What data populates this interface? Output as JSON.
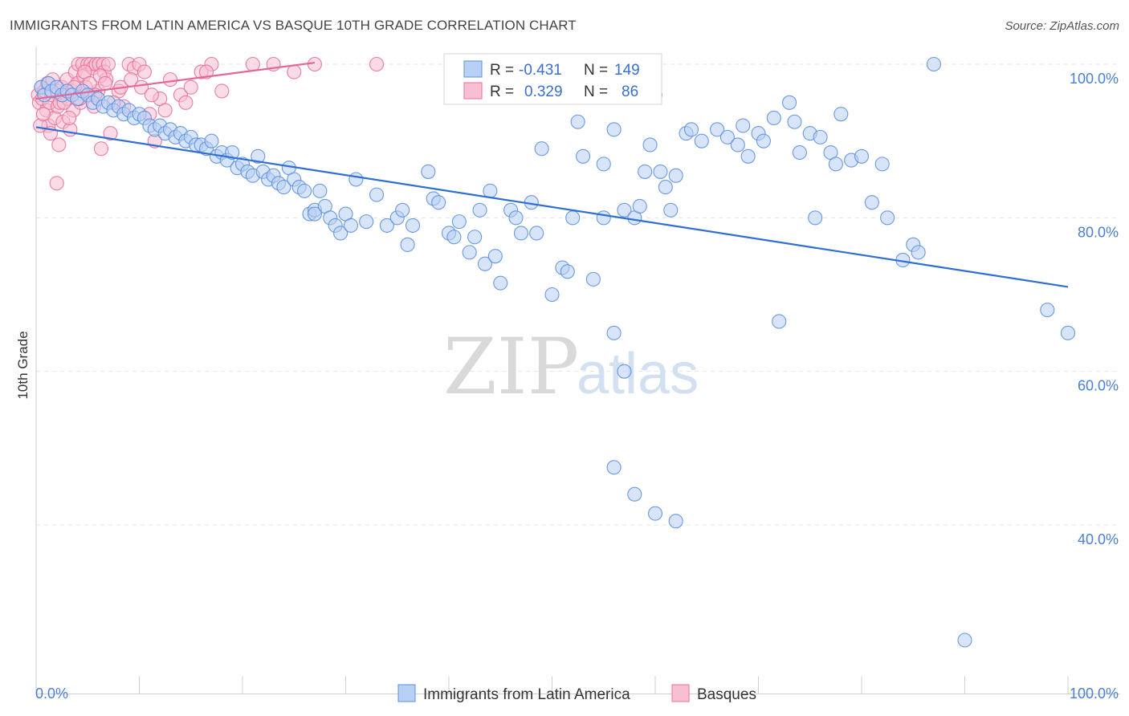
{
  "title": "IMMIGRANTS FROM LATIN AMERICA VS BASQUE 10TH GRADE CORRELATION CHART",
  "source": "Source: ZipAtlas.com",
  "watermark": {
    "zip": "ZIP",
    "atlas": "atlas"
  },
  "legend_box": [
    {
      "r_label": "R =",
      "r_value": "-0.431",
      "n_label": "N =",
      "n_value": "149"
    },
    {
      "r_label": "R =",
      "r_value": "0.329",
      "n_label": "N =",
      "n_value": "86"
    }
  ],
  "chart_data": {
    "type": "scatter",
    "title": "IMMIGRANTS FROM LATIN AMERICA VS BASQUE 10TH GRADE CORRELATION CHART",
    "xlabel": "",
    "ylabel": "10th Grade",
    "xlim": [
      0,
      100
    ],
    "ylim": [
      18,
      101
    ],
    "x_tick_labels": [
      "0.0%",
      "100.0%"
    ],
    "y_ticks": [
      40,
      60,
      80,
      100
    ],
    "y_tick_labels": [
      "40.0%",
      "60.0%",
      "80.0%",
      "100.0%"
    ],
    "grid": true,
    "legend_position": "bottom",
    "colors": {
      "blue": "#5b8fe0",
      "blue_fill": "#b8d0f4",
      "pink": "#e87099",
      "pink_fill": "#f7bfd2",
      "blue_line": "#2f6fd1",
      "pink_line": "#e0699a"
    },
    "series": [
      {
        "name": "Immigrants from Latin America",
        "color": "blue",
        "trend": {
          "x": [
            0,
            100
          ],
          "y": [
            91.8,
            71.0
          ]
        },
        "points": [
          [
            0.5,
            97
          ],
          [
            0.8,
            96
          ],
          [
            1.2,
            97.5
          ],
          [
            1.5,
            96.5
          ],
          [
            2,
            97
          ],
          [
            2.5,
            96
          ],
          [
            3,
            96.5
          ],
          [
            3.5,
            96
          ],
          [
            4,
            95.5
          ],
          [
            4.5,
            96.5
          ],
          [
            5,
            96
          ],
          [
            5.5,
            95
          ],
          [
            6,
            95.5
          ],
          [
            6.5,
            94.5
          ],
          [
            7,
            95
          ],
          [
            7.5,
            94
          ],
          [
            8,
            94.5
          ],
          [
            8.5,
            93.5
          ],
          [
            9,
            94
          ],
          [
            9.5,
            93
          ],
          [
            10,
            93.5
          ],
          [
            10.5,
            93
          ],
          [
            11,
            92
          ],
          [
            11.5,
            91.5
          ],
          [
            12,
            92
          ],
          [
            12.5,
            91
          ],
          [
            13,
            91.5
          ],
          [
            13.5,
            90.5
          ],
          [
            14,
            91
          ],
          [
            14.5,
            90
          ],
          [
            15,
            90.5
          ],
          [
            15.5,
            89.5
          ],
          [
            16,
            89.5
          ],
          [
            16.5,
            89
          ],
          [
            17,
            90
          ],
          [
            17.5,
            88
          ],
          [
            18,
            88.5
          ],
          [
            18.5,
            87.5
          ],
          [
            19,
            88.5
          ],
          [
            19.5,
            86.5
          ],
          [
            20,
            87
          ],
          [
            20.5,
            86
          ],
          [
            21,
            85.5
          ],
          [
            21.5,
            88
          ],
          [
            22,
            86
          ],
          [
            22.5,
            85
          ],
          [
            23,
            85.5
          ],
          [
            23.5,
            84.5
          ],
          [
            24,
            84
          ],
          [
            24.5,
            86.5
          ],
          [
            25,
            85
          ],
          [
            25.5,
            84
          ],
          [
            26,
            83.5
          ],
          [
            26.5,
            80.5
          ],
          [
            27,
            81
          ],
          [
            27.5,
            83.5
          ],
          [
            28,
            81.5
          ],
          [
            28.5,
            80
          ],
          [
            29,
            79
          ],
          [
            29.5,
            78
          ],
          [
            30,
            80.5
          ],
          [
            30.5,
            79
          ],
          [
            31,
            85
          ],
          [
            32,
            79.5
          ],
          [
            33,
            83
          ],
          [
            34,
            79
          ],
          [
            35,
            80
          ],
          [
            35.5,
            81
          ],
          [
            36,
            76.5
          ],
          [
            36.5,
            79
          ],
          [
            38,
            86
          ],
          [
            38.5,
            82.5
          ],
          [
            39,
            82
          ],
          [
            40,
            78
          ],
          [
            40.5,
            77.5
          ],
          [
            41,
            79.5
          ],
          [
            42,
            75.5
          ],
          [
            42.5,
            77.5
          ],
          [
            43,
            81
          ],
          [
            43.5,
            74
          ],
          [
            44,
            83.5
          ],
          [
            44.5,
            75
          ],
          [
            45,
            71.5
          ],
          [
            46,
            81
          ],
          [
            46.5,
            80
          ],
          [
            47,
            78
          ],
          [
            48,
            82
          ],
          [
            48.5,
            78
          ],
          [
            49,
            89
          ],
          [
            50,
            70
          ],
          [
            51,
            73.5
          ],
          [
            51.5,
            73
          ],
          [
            52,
            80
          ],
          [
            52.5,
            92.5
          ],
          [
            53,
            88
          ],
          [
            54,
            72
          ],
          [
            55,
            87
          ],
          [
            55,
            80
          ],
          [
            56,
            91.5
          ],
          [
            57,
            81
          ],
          [
            58,
            80
          ],
          [
            58.5,
            81.5
          ],
          [
            59,
            86
          ],
          [
            59.5,
            89.5
          ],
          [
            60,
            96
          ],
          [
            60.5,
            86
          ],
          [
            61,
            84
          ],
          [
            61.5,
            81
          ],
          [
            56,
            65
          ],
          [
            57,
            60
          ],
          [
            62,
            85.5
          ],
          [
            63,
            91
          ],
          [
            63.5,
            91.5
          ],
          [
            64.5,
            90
          ],
          [
            66,
            91.5
          ],
          [
            67,
            90.5
          ],
          [
            68,
            89.5
          ],
          [
            68.5,
            92
          ],
          [
            69,
            88
          ],
          [
            70,
            91
          ],
          [
            70.5,
            90
          ],
          [
            71.5,
            93
          ],
          [
            72,
            66.5
          ],
          [
            73,
            95
          ],
          [
            73.5,
            92.5
          ],
          [
            74,
            88.5
          ],
          [
            75,
            91
          ],
          [
            75.5,
            80
          ],
          [
            76,
            90.5
          ],
          [
            77,
            88.5
          ],
          [
            77.5,
            87
          ],
          [
            78,
            93.5
          ],
          [
            79,
            87.5
          ],
          [
            80,
            88
          ],
          [
            81,
            82
          ],
          [
            82,
            87
          ],
          [
            82.5,
            80
          ],
          [
            84,
            74.5
          ],
          [
            85,
            76.5
          ],
          [
            85.5,
            75.5
          ],
          [
            87,
            100
          ],
          [
            98,
            68
          ],
          [
            100,
            65
          ],
          [
            90,
            25
          ],
          [
            56,
            47.5
          ],
          [
            58,
            44
          ],
          [
            60,
            41.5
          ],
          [
            62,
            40.5
          ],
          [
            27,
            80.5
          ]
        ]
      },
      {
        "name": "Basques",
        "color": "pink",
        "trend": {
          "x": [
            0,
            27
          ],
          "y": [
            95.5,
            100.2
          ]
        },
        "points": [
          [
            0.2,
            96
          ],
          [
            0.3,
            95
          ],
          [
            0.5,
            97
          ],
          [
            0.6,
            95.5
          ],
          [
            0.8,
            96.5
          ],
          [
            1,
            94
          ],
          [
            1.1,
            97.5
          ],
          [
            1.2,
            92
          ],
          [
            1.3,
            95
          ],
          [
            1.5,
            96
          ],
          [
            1.6,
            98
          ],
          [
            1.8,
            93
          ],
          [
            2,
            96.5
          ],
          [
            2.1,
            94.5
          ],
          [
            2.3,
            95
          ],
          [
            2.5,
            97
          ],
          [
            2.6,
            92.5
          ],
          [
            2.8,
            96
          ],
          [
            3,
            98
          ],
          [
            3.1,
            95.5
          ],
          [
            3.3,
            91.5
          ],
          [
            3.5,
            96.5
          ],
          [
            3.6,
            94
          ],
          [
            3.8,
            99
          ],
          [
            4,
            97.5
          ],
          [
            4.1,
            100
          ],
          [
            4.3,
            95
          ],
          [
            4.5,
            100
          ],
          [
            4.6,
            98.5
          ],
          [
            4.8,
            97
          ],
          [
            5,
            100
          ],
          [
            5.1,
            96
          ],
          [
            5.3,
            100
          ],
          [
            5.5,
            99.5
          ],
          [
            5.6,
            94.5
          ],
          [
            5.8,
            100
          ],
          [
            6,
            96.5
          ],
          [
            6.1,
            100
          ],
          [
            6.3,
            89
          ],
          [
            6.5,
            100
          ],
          [
            6.6,
            99
          ],
          [
            6.8,
            98
          ],
          [
            7,
            100
          ],
          [
            7.2,
            91
          ],
          [
            8,
            96.5
          ],
          [
            8.5,
            94.5
          ],
          [
            9,
            100
          ],
          [
            9.5,
            99.5
          ],
          [
            10,
            100
          ],
          [
            10.5,
            99
          ],
          [
            11,
            93.5
          ],
          [
            11.5,
            90
          ],
          [
            12,
            95.5
          ],
          [
            13,
            98
          ],
          [
            14,
            96
          ],
          [
            14.5,
            95
          ],
          [
            15,
            97
          ],
          [
            16,
            99
          ],
          [
            17,
            100
          ],
          [
            18,
            96.5
          ],
          [
            21,
            100
          ],
          [
            23,
            100
          ],
          [
            25,
            99
          ],
          [
            27,
            100
          ],
          [
            33,
            100
          ],
          [
            2,
            84.5
          ],
          [
            0.4,
            92
          ],
          [
            0.7,
            93.5
          ],
          [
            1.4,
            91
          ],
          [
            2.2,
            89.5
          ],
          [
            2.7,
            95
          ],
          [
            3.2,
            93
          ],
          [
            3.7,
            97
          ],
          [
            4.2,
            95.5
          ],
          [
            4.7,
            99
          ],
          [
            5.2,
            97.5
          ],
          [
            5.7,
            96
          ],
          [
            6.2,
            98.5
          ],
          [
            6.7,
            97.5
          ],
          [
            7.5,
            95
          ],
          [
            8.2,
            97
          ],
          [
            9.2,
            98
          ],
          [
            10.2,
            97
          ],
          [
            11.2,
            96
          ],
          [
            12.5,
            94
          ],
          [
            16.5,
            99
          ]
        ]
      }
    ]
  },
  "bottom_legend": [
    "Immigrants from Latin America",
    "Basques"
  ]
}
